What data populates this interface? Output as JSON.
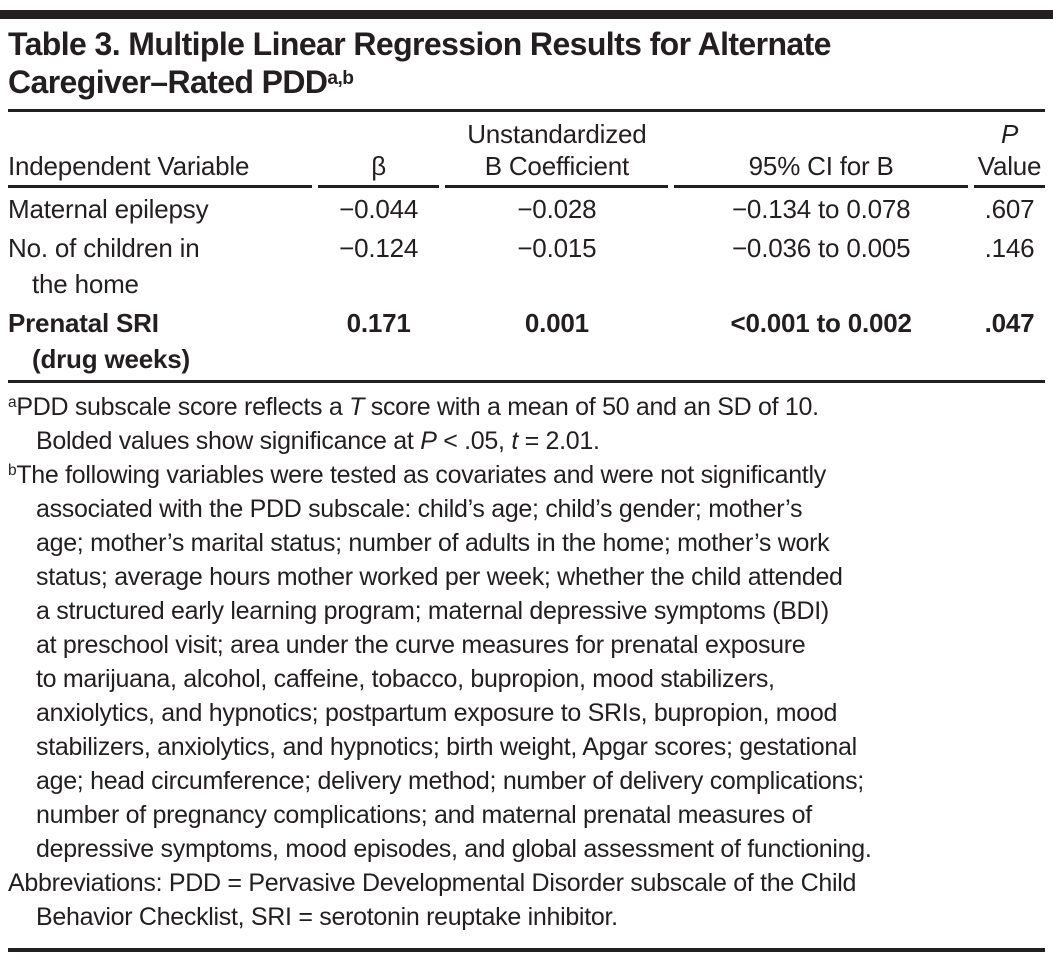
{
  "accent_color": "#231f20",
  "title": {
    "line1": "Table 3. Multiple Linear Regression Results for Alternate",
    "line2": "Caregiver–Rated PDD",
    "superscript": "a,b"
  },
  "table": {
    "header": {
      "col1": "Independent Variable",
      "col2": "β",
      "col3_line1": "Unstandardized",
      "col3_line2": "B Coefficient",
      "col4": "95% CI for B",
      "col5_line1": "P",
      "col5_line2": "Value"
    },
    "rows": [
      {
        "name1": "Maternal epilepsy",
        "beta": "−0.044",
        "b_coeff": "−0.028",
        "ci": "−0.134 to 0.078",
        "p": ".607"
      },
      {
        "name1": "No. of children in",
        "name2": "the home",
        "beta": "−0.124",
        "b_coeff": "−0.015",
        "ci": "−0.036 to 0.005",
        "p": ".146"
      },
      {
        "name1": "Prenatal SRI",
        "name2": "(drug weeks)",
        "beta": "0.171",
        "b_coeff": "0.001",
        "ci": "<0.001 to 0.002",
        "p": ".047"
      }
    ]
  },
  "footnote_a": {
    "marker": "a",
    "l1_s1": "PDD subscale score reflects a ",
    "l1_s2": "T",
    "l1_s3": " score with a mean of 50 and an SD of 10.",
    "l2_s1": "Bolded values show significance at ",
    "l2_s2": "P",
    "l2_s3": " < .05, ",
    "l2_s4": "t",
    "l2_s5": " = 2.01."
  },
  "footnote_b": {
    "marker": "b",
    "line1": "The following variables were tested as covariates and were not significantly",
    "lines_cont": [
      "associated with the PDD subscale: child’s age; child’s gender; mother’s",
      "age; mother’s marital status; number of adults in the home; mother’s work",
      "status; average hours mother worked per week; whether the child attended",
      "a structured early learning program; maternal depressive symptoms (BDI)",
      "at preschool visit; area under the curve measures for prenatal exposure",
      "to marijuana, alcohol, caffeine, tobacco, bupropion, mood stabilizers,",
      "anxiolytics, and hypnotics; postpartum exposure to SRIs, bupropion, mood",
      "stabilizers, anxiolytics, and hypnotics; birth weight, Apgar scores; gestational",
      "age; head circumference; delivery method; number of delivery complications;",
      "number of pregnancy complications; and maternal prenatal measures of",
      "depressive symptoms, mood episodes, and global assessment of functioning."
    ]
  },
  "abbreviations": {
    "line1": "Abbreviations: PDD = Pervasive Developmental Disorder subscale of the Child",
    "line2": "Behavior Checklist, SRI = serotonin reuptake inhibitor."
  }
}
